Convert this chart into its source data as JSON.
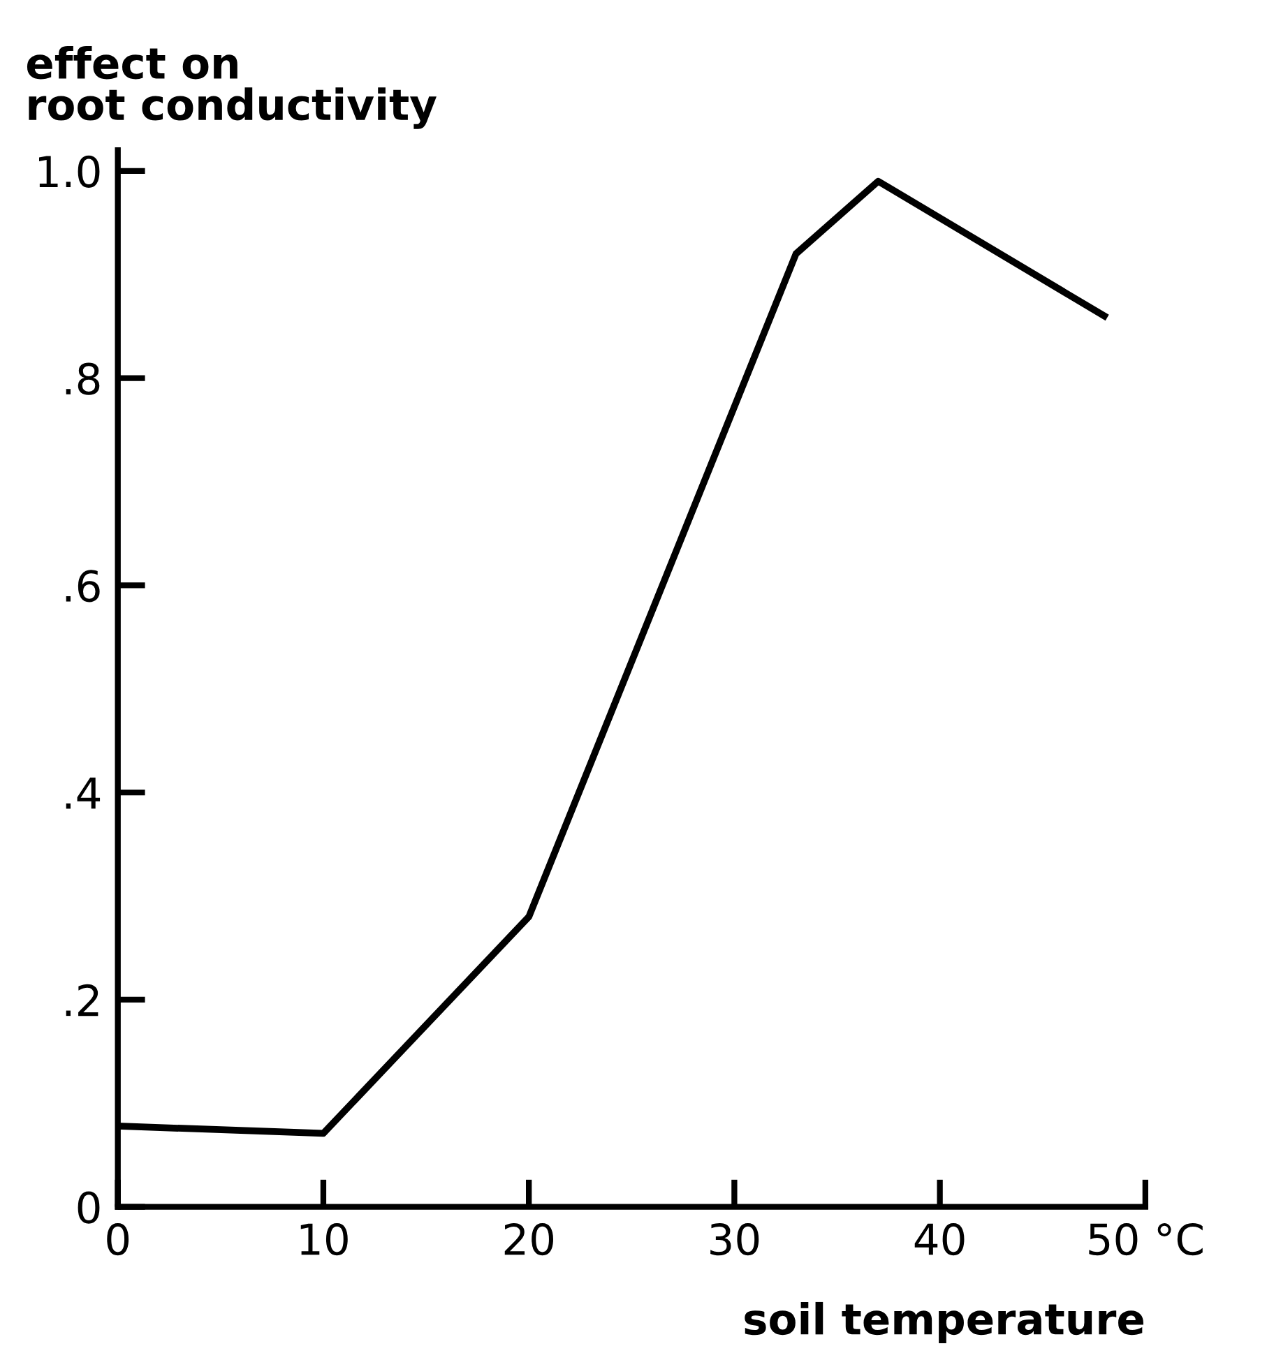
{
  "chart_data": {
    "type": "line",
    "ylabel": "effect on\nroot conductivity",
    "xlabel": "soil temperature",
    "x": [
      0,
      10,
      20,
      33,
      37,
      48
    ],
    "series": [
      {
        "color": "#000000",
        "values": [
          0.078,
          0.071,
          0.28,
          0.92,
          0.99,
          0.86
        ]
      }
    ],
    "xlim": [
      0,
      50
    ],
    "ylim": [
      0,
      1.02
    ],
    "xticks": [
      0,
      10,
      20,
      30,
      40,
      {
        "value": 50,
        "label": "50 °C"
      }
    ],
    "yticks": [
      0,
      {
        "value": 0.2,
        "label": ".2"
      },
      {
        "value": 0.4,
        "label": ".4"
      },
      {
        "value": 0.6,
        "label": ".6"
      },
      {
        "value": 0.8,
        "label": ".8"
      },
      {
        "value": 1.0,
        "label": "1.0"
      }
    ],
    "grid": false,
    "legend": false,
    "marker": "none",
    "line_style": "solid"
  }
}
